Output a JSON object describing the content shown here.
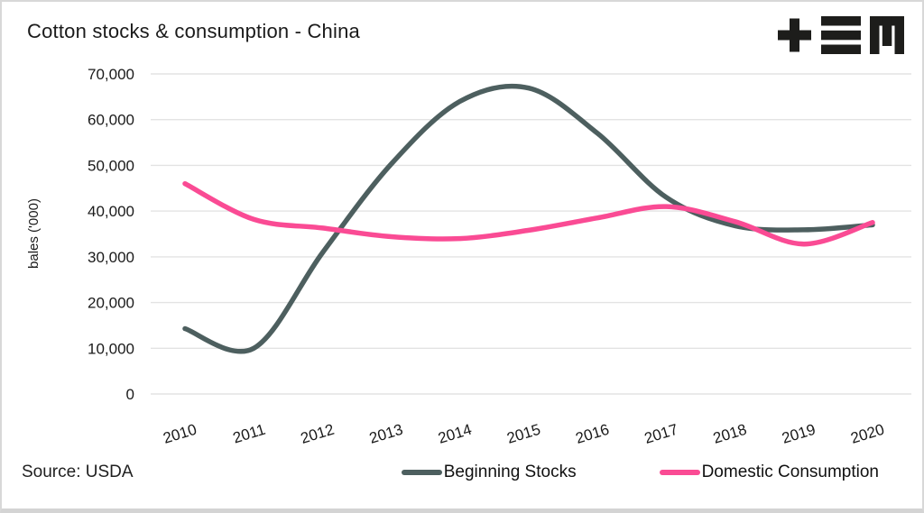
{
  "title": "Cotton stocks & consumption - China",
  "source": "Source: USDA",
  "logo_name": "tem-logo",
  "colors": {
    "stocks": "#4d5f5f",
    "consumption": "#fa4b94",
    "grid": "#e3e3e3",
    "text": "#1a1a1a",
    "logo": "#1d1d1b",
    "border": "#d8d8d8"
  },
  "chart_data": {
    "type": "line",
    "title": "Cotton stocks & consumption - China",
    "xlabel": "",
    "ylabel": "bales ('000)",
    "x": [
      2010,
      2011,
      2012,
      2013,
      2014,
      2015,
      2016,
      2017,
      2018,
      2019,
      2020
    ],
    "series": [
      {
        "name": "Beginning Stocks",
        "color": "#4d5f5f",
        "values": [
          14300,
          10000,
          30900,
          50300,
          64000,
          66900,
          57000,
          43000,
          36800,
          35900,
          37000
        ]
      },
      {
        "name": "Domestic Consumption",
        "color": "#fa4b94",
        "values": [
          46000,
          38200,
          36300,
          34400,
          34000,
          35800,
          38500,
          41000,
          37700,
          32800,
          37500
        ]
      }
    ],
    "ylim": [
      0,
      70000
    ],
    "yticks": [
      0,
      10000,
      20000,
      30000,
      40000,
      50000,
      60000,
      70000
    ],
    "ytick_labels": [
      "0",
      "10,000",
      "20,000",
      "30,000",
      "40,000",
      "50,000",
      "60,000",
      "70,000"
    ],
    "grid": true,
    "legend_position": "bottom",
    "line_width": 5.5,
    "smoothing": "spline"
  }
}
